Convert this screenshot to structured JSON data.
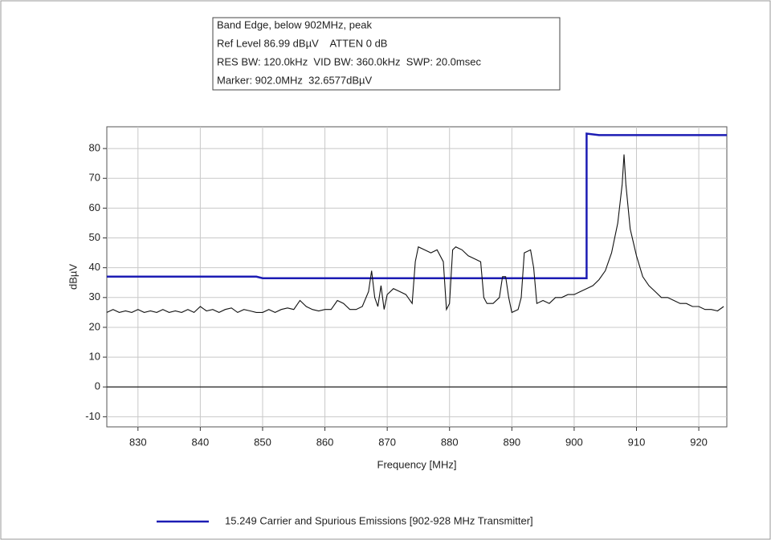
{
  "chart_data": {
    "type": "line",
    "info": [
      "Band Edge, below 902MHz, peak",
      "Ref Level 86.99 dBµV    ATTEN 0 dB",
      "RES BW: 120.0kHz  VID BW: 360.0kHz  SWP: 20.0msec",
      "Marker: 902.0MHz  32.6577dBµV"
    ],
    "xlabel": "Frequency [MHz]",
    "ylabel": "dBµV",
    "xlim": [
      825,
      924.5
    ],
    "ylim": [
      -13.4,
      87.3
    ],
    "xticks": [
      830,
      840,
      850,
      860,
      870,
      880,
      890,
      900,
      910,
      920
    ],
    "yticks": [
      -10,
      0,
      10,
      20,
      30,
      40,
      50,
      60,
      70,
      80
    ],
    "grid": true,
    "series": [
      {
        "name": "15.249 Carrier and Spurious Emissions [902-928 MHz Transmitter]",
        "color": "#1c1cb4",
        "x": [
          825,
          849,
          850,
          902,
          902,
          904,
          924.5
        ],
        "values": [
          37,
          37,
          36.5,
          36.5,
          85,
          84.5,
          84.5
        ]
      },
      {
        "color": "#111111",
        "x": [
          825,
          826,
          827,
          828,
          829,
          830,
          831,
          832,
          833,
          834,
          835,
          836,
          837,
          838,
          839,
          840,
          841,
          842,
          843,
          844,
          845,
          846,
          847,
          848,
          849,
          850,
          851,
          852,
          853,
          854,
          855,
          856,
          857,
          858,
          859,
          860,
          861,
          862,
          863,
          864,
          865,
          866,
          867,
          867.5,
          868,
          868.5,
          869,
          869.5,
          870,
          871,
          872,
          873,
          874,
          874.5,
          875,
          876,
          877,
          878,
          879,
          879.5,
          880,
          880.5,
          881,
          882,
          883,
          884,
          885,
          885.5,
          886,
          887,
          888,
          888.5,
          889,
          889.5,
          890,
          891,
          891.5,
          892,
          893,
          893.5,
          894,
          895,
          896,
          897,
          898,
          899,
          900,
          901,
          902,
          903,
          904,
          905,
          906,
          907,
          907.7,
          908,
          908.3,
          909,
          910,
          911,
          912,
          913,
          914,
          915,
          916,
          917,
          918,
          919,
          920,
          921,
          922,
          923,
          924
        ],
        "values": [
          25,
          26,
          25,
          25.5,
          25,
          26,
          25,
          25.5,
          25,
          26,
          25,
          25.5,
          25,
          26,
          25,
          27,
          25.5,
          26,
          25,
          26,
          26.5,
          25,
          26,
          25.5,
          25,
          25,
          26,
          25,
          26,
          26.5,
          26,
          29,
          27,
          26,
          25.5,
          26,
          26,
          29,
          28,
          26,
          26,
          27,
          32,
          39,
          30,
          27,
          34,
          26,
          31,
          33,
          32,
          31,
          28,
          42,
          47,
          46,
          45,
          46,
          42,
          26,
          28,
          46,
          47,
          46,
          44,
          43,
          42,
          30,
          28,
          28,
          30,
          37,
          37,
          30,
          25,
          26,
          30,
          45,
          46,
          40,
          28,
          29,
          28,
          30,
          30,
          31,
          31,
          32,
          33,
          34,
          36,
          39,
          45,
          55,
          68,
          78,
          68,
          53,
          44,
          37,
          34,
          32,
          30,
          30,
          29,
          28,
          28,
          27,
          27,
          26,
          26,
          25.5,
          27
        ]
      }
    ]
  }
}
